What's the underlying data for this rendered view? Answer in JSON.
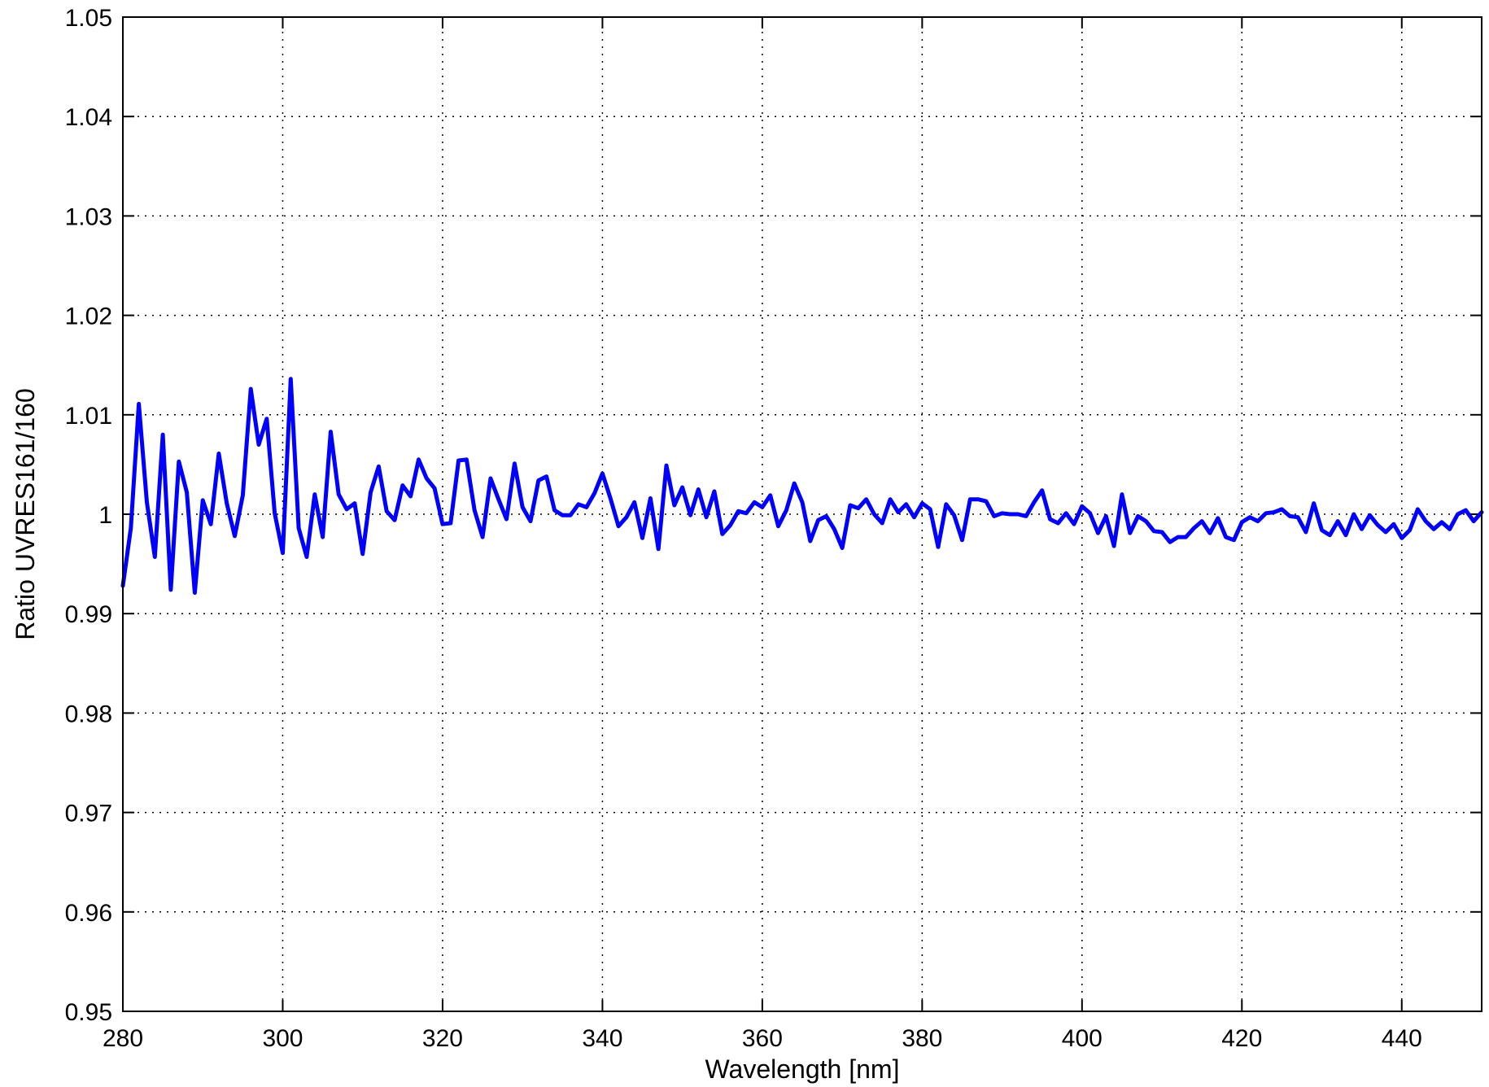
{
  "chart_data": {
    "type": "line",
    "title": "",
    "xlabel": "Wavelength [nm]",
    "ylabel": "Ratio UVRES161/160",
    "xlim": [
      280,
      450
    ],
    "ylim": [
      0.95,
      1.05
    ],
    "x_ticks": [
      280,
      300,
      320,
      340,
      360,
      380,
      400,
      420,
      440
    ],
    "x_tick_labels": [
      "280",
      "300",
      "320",
      "340",
      "360",
      "380",
      "400",
      "420",
      "440"
    ],
    "y_ticks": [
      0.95,
      0.96,
      0.97,
      0.98,
      0.99,
      1.0,
      1.01,
      1.02,
      1.03,
      1.04,
      1.05
    ],
    "y_tick_labels": [
      "0.95",
      "0.96",
      "0.97",
      "0.98",
      "0.99",
      "1",
      "1.01",
      "1.02",
      "1.03",
      "1.04",
      "1.05"
    ],
    "grid": true,
    "legend": "none",
    "series_color": "#0000ff",
    "series": [
      {
        "x": [
          280,
          281,
          282,
          283,
          284,
          285,
          286,
          287,
          288,
          289,
          290,
          291,
          292,
          293,
          294,
          295,
          296,
          297,
          298,
          299,
          300,
          301,
          302,
          303,
          304,
          305,
          306,
          307,
          308,
          309,
          310,
          311,
          312,
          313,
          314,
          315,
          316,
          317,
          318,
          319,
          320,
          321,
          322,
          323,
          324,
          325,
          326,
          327,
          328,
          329,
          330,
          331,
          332,
          333,
          334,
          335,
          336,
          337,
          338,
          339,
          340,
          341,
          342,
          343,
          344,
          345,
          346,
          347,
          348,
          349,
          350,
          351,
          352,
          353,
          354,
          355,
          356,
          357,
          358,
          359,
          360,
          361,
          362,
          363,
          364,
          365,
          366,
          367,
          368,
          369,
          370,
          371,
          372,
          373,
          374,
          375,
          376,
          377,
          378,
          379,
          380,
          381,
          382,
          383,
          384,
          385,
          386,
          387,
          388,
          389,
          390,
          391,
          392,
          393,
          394,
          395,
          396,
          397,
          398,
          399,
          400,
          401,
          402,
          403,
          404,
          405,
          406,
          407,
          408,
          409,
          410,
          411,
          412,
          413,
          414,
          415,
          416,
          417,
          418,
          419,
          420,
          421,
          422,
          423,
          424,
          425,
          426,
          427,
          428,
          429,
          430,
          431,
          432,
          433,
          434,
          435,
          436,
          437,
          438,
          439,
          440,
          441,
          442,
          443,
          444,
          445,
          446,
          447,
          448,
          449,
          450
        ],
        "values": [
          0.9928,
          0.9986,
          1.0111,
          1.0012,
          0.9957,
          1.008,
          0.9924,
          1.0053,
          1.0022,
          0.9921,
          1.0014,
          0.999,
          1.0061,
          1.0011,
          0.9978,
          1.0019,
          1.0126,
          1.007,
          1.0096,
          1.0001,
          0.9961,
          1.0136,
          0.9986,
          0.9957,
          1.002,
          0.9977,
          1.0083,
          1.002,
          1.0005,
          1.0011,
          0.996,
          1.0022,
          1.0048,
          1.0003,
          0.9994,
          1.0029,
          1.0018,
          1.0055,
          1.0036,
          1.0026,
          0.999,
          0.9991,
          1.0054,
          1.0055,
          1.0004,
          0.9977,
          1.0036,
          1.0015,
          0.9995,
          1.0051,
          1.0007,
          0.9993,
          1.0034,
          1.0038,
          1.0004,
          0.9999,
          0.9999,
          1.001,
          1.0007,
          1.0021,
          1.0041,
          1.0016,
          0.9988,
          0.9997,
          1.0012,
          0.9976,
          1.0016,
          0.9965,
          1.0049,
          1.0009,
          1.0027,
          0.9999,
          1.0025,
          0.9997,
          1.0023,
          0.998,
          0.9989,
          1.0003,
          1.0001,
          1.0012,
          1.0007,
          1.0019,
          0.9988,
          1.0004,
          1.0031,
          1.0012,
          0.9973,
          0.9994,
          0.9998,
          0.9985,
          0.9966,
          1.0009,
          1.0006,
          1.0015,
          1.0,
          0.9991,
          1.0015,
          1.0002,
          1.001,
          0.9997,
          1.0011,
          1.0005,
          0.9967,
          1.001,
          0.9999,
          0.9974,
          1.0015,
          1.0015,
          1.0013,
          0.9998,
          1.0001,
          1.0,
          1.0,
          0.9998,
          1.0012,
          1.0024,
          0.9995,
          0.9991,
          1.0001,
          0.999,
          1.0008,
          1.0001,
          0.9981,
          0.9998,
          0.9968,
          1.002,
          0.9981,
          0.9998,
          0.9993,
          0.9983,
          0.9982,
          0.9972,
          0.9977,
          0.9977,
          0.9986,
          0.9993,
          0.9981,
          0.9996,
          0.9977,
          0.9974,
          0.9992,
          0.9997,
          0.9993,
          1.0001,
          1.0002,
          1.0005,
          0.9998,
          0.9997,
          0.9982,
          1.0011,
          0.9984,
          0.9979,
          0.9993,
          0.9979,
          1.0,
          0.9985,
          0.9999,
          0.9989,
          0.9982,
          0.999,
          0.9976,
          0.9984,
          1.0005,
          0.9993,
          0.9985,
          0.9992,
          0.9985,
          1.0,
          1.0004,
          0.9993,
          1.0002
        ]
      }
    ]
  }
}
